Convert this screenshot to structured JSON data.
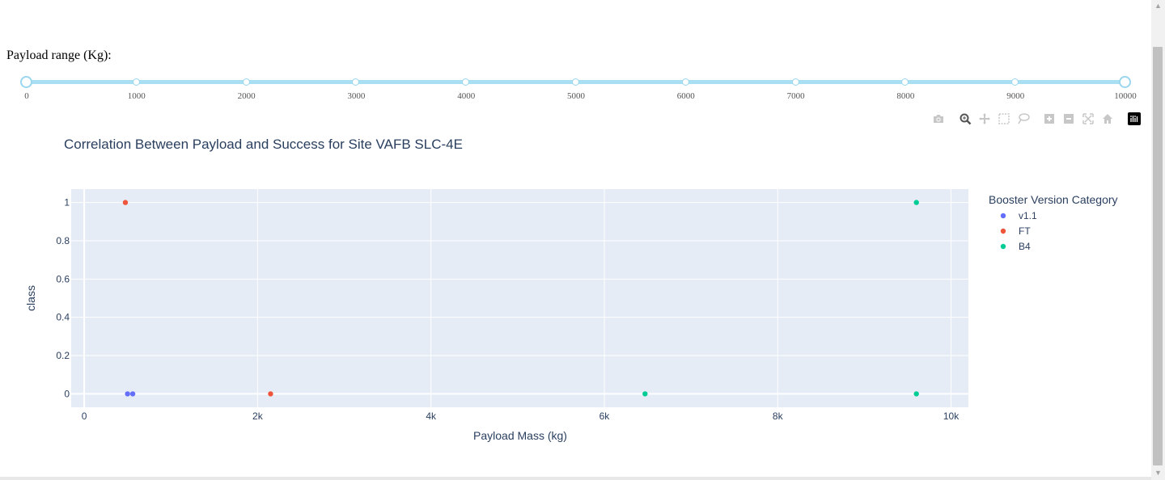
{
  "slider": {
    "label": "Payload range (Kg):",
    "min": 0,
    "max": 10000,
    "marks": [
      "0",
      "1000",
      "2000",
      "3000",
      "4000",
      "5000",
      "6000",
      "7000",
      "8000",
      "9000",
      "10000"
    ],
    "value": [
      0,
      10000
    ]
  },
  "modebar": {
    "buttons": [
      "camera-icon",
      "zoom-icon",
      "pan-icon",
      "box-select-icon",
      "lasso-select-icon",
      "zoom-in-icon",
      "zoom-out-icon",
      "autoscale-icon",
      "reset-axes-icon",
      "plotly-logo-icon"
    ]
  },
  "chart_data": {
    "type": "scatter",
    "title": "Correlation Between Payload and Success for Site VAFB SLC-4E",
    "xlabel": "Payload Mass (kg)",
    "ylabel": "class",
    "xlim": [
      -150,
      10200
    ],
    "ylim": [
      -0.07,
      1.07
    ],
    "x_ticks": [
      0,
      2000,
      4000,
      6000,
      8000,
      10000
    ],
    "x_tick_labels": [
      "0",
      "2k",
      "4k",
      "6k",
      "8k",
      "10k"
    ],
    "y_ticks": [
      0,
      0.2,
      0.4,
      0.6,
      0.8,
      1
    ],
    "y_tick_labels": [
      "0",
      "0.2",
      "0.4",
      "0.6",
      "0.8",
      "1"
    ],
    "grid": true,
    "plot_bg": "#e5ecf6",
    "legend_title": "Booster Version Category",
    "legend_position": "right",
    "series": [
      {
        "name": "v1.1",
        "color": "#636efa",
        "points": [
          [
            500,
            0
          ],
          [
            560,
            0
          ]
        ]
      },
      {
        "name": "FT",
        "color": "#ef553b",
        "points": [
          [
            475,
            1
          ],
          [
            2150,
            0
          ]
        ]
      },
      {
        "name": "B4",
        "color": "#00cc96",
        "points": [
          [
            9600,
            1
          ],
          [
            6470,
            0
          ],
          [
            9600,
            0
          ]
        ]
      }
    ]
  }
}
